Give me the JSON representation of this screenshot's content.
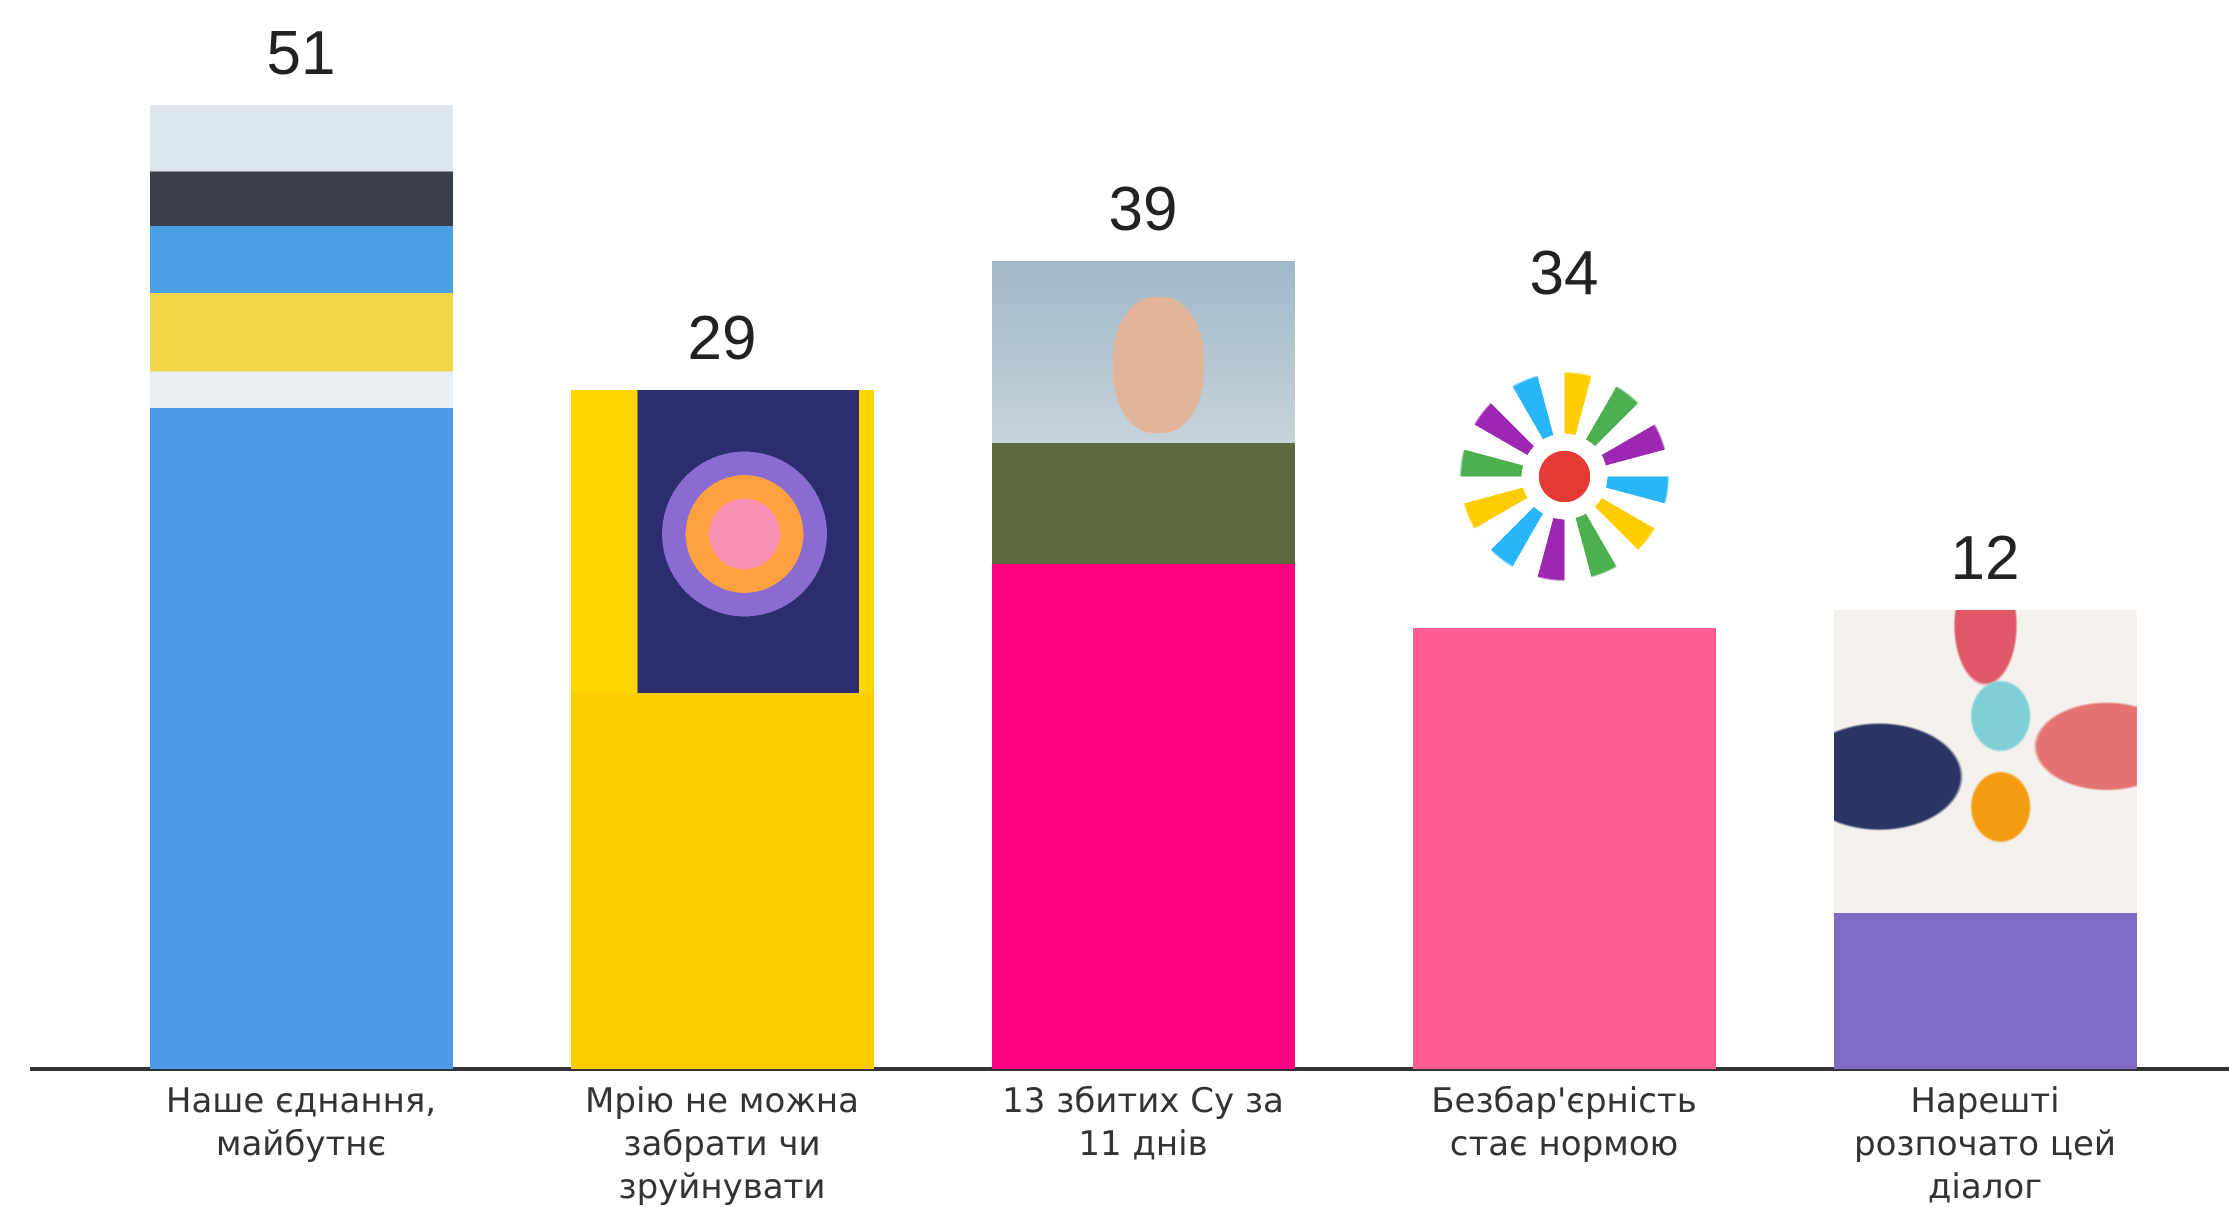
{
  "chart_data": {
    "type": "bar",
    "categories": [
      "Наше єднання, майбутнє",
      "Мрію не можна забрати чи зруйнувати",
      "13 збитих Су за 11 днів",
      "Безбар'єрність стає нормою",
      "Нарешті розпочато цей діалог"
    ],
    "values": [
      51,
      29,
      39,
      34,
      12
    ],
    "colors": [
      "#4f9ae8",
      "#ffcc00",
      "#ff0080",
      "#ff5c93",
      "#7f6bc6"
    ]
  }
}
